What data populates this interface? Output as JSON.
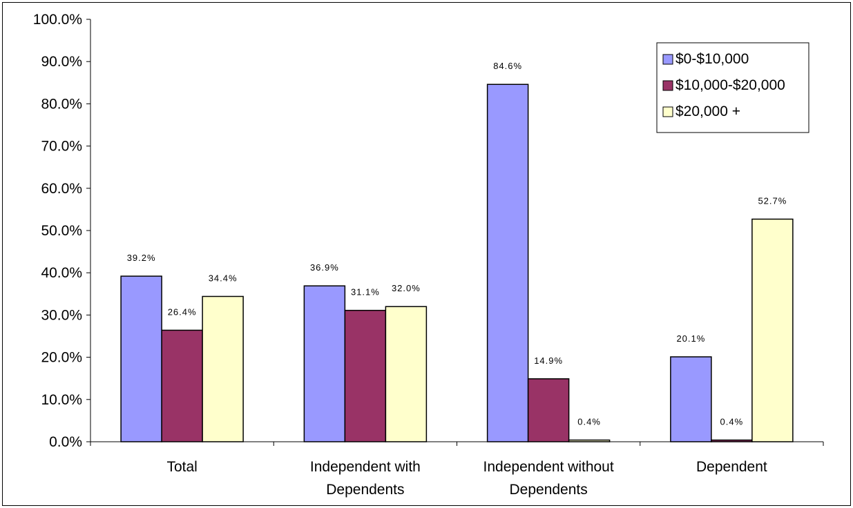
{
  "chart_data": {
    "type": "bar",
    "categories": [
      [
        "Total"
      ],
      [
        "Independent with",
        "Dependents"
      ],
      [
        "Independent without",
        "Dependents"
      ],
      [
        "Dependent"
      ]
    ],
    "series": [
      {
        "name": "$0-$10,000",
        "color": "#9999FF",
        "values": [
          39.2,
          36.9,
          84.6,
          20.1
        ],
        "labels": [
          "39.2%",
          "36.9%",
          "84.6%",
          "20.1%"
        ]
      },
      {
        "name": "$10,000-$20,000",
        "color": "#993366",
        "values": [
          26.4,
          31.1,
          14.9,
          0.4
        ],
        "labels": [
          "26.4%",
          "31.1%",
          "14.9%",
          "0.4%"
        ]
      },
      {
        "name": "$20,000 +",
        "color": "#FFFFCC",
        "values": [
          34.4,
          32.0,
          0.4,
          52.7
        ],
        "labels": [
          "34.4%",
          "32.0%",
          "0.4%",
          "52.7%"
        ]
      }
    ],
    "yticks": [
      "0.0%",
      "10.0%",
      "20.0%",
      "30.0%",
      "40.0%",
      "50.0%",
      "60.0%",
      "70.0%",
      "80.0%",
      "90.0%",
      "100.0%"
    ],
    "ylim": [
      0,
      100
    ],
    "grid": false,
    "legend": "top-right"
  }
}
